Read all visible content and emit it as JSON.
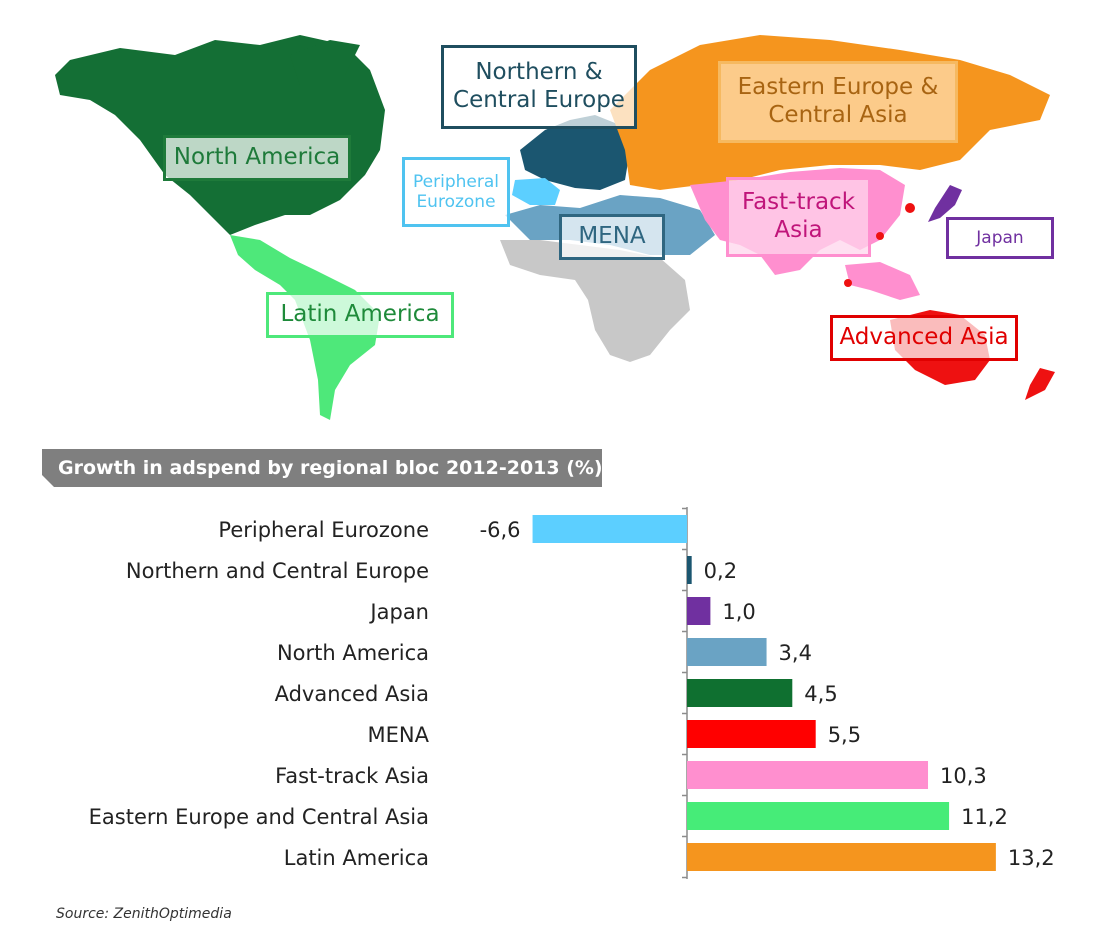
{
  "map": {
    "labels": [
      {
        "id": "northern-central-europe",
        "lines": [
          "Northern &",
          "Central Europe"
        ],
        "color": "#1f4e5f"
      },
      {
        "id": "eastern-europe-central-asia",
        "lines": [
          "Eastern Europe &",
          "Central Asia"
        ],
        "color": "#e08a1a"
      },
      {
        "id": "north-america",
        "lines": [
          "North America"
        ],
        "color": "#1e7a3a"
      },
      {
        "id": "peripheral-eurozone",
        "lines": [
          "Peripheral",
          "Eurozone"
        ],
        "color": "#4fc3f0"
      },
      {
        "id": "fast-track-asia",
        "lines": [
          "Fast-track",
          "Asia"
        ],
        "color": "#c0157a"
      },
      {
        "id": "mena",
        "lines": [
          "MENA"
        ],
        "color": "#2f6680"
      },
      {
        "id": "japan",
        "lines": [
          "Japan"
        ],
        "color": "#7030a0"
      },
      {
        "id": "latin-america",
        "lines": [
          "Latin America"
        ],
        "color": "#1e8a3a"
      },
      {
        "id": "advanced-asia",
        "lines": [
          "Advanced Asia"
        ],
        "color": "#e00000"
      }
    ],
    "region_colors": {
      "north_america": "#146f35",
      "latin_america": "#4ee87a",
      "northern_central_europe": "#1b5670",
      "peripheral_eurozone": "#5ccfff",
      "eastern_europe_central_asia": "#f5951e",
      "mena": "#6aa3c4",
      "africa": "#c8c8c8",
      "fast_track_asia": "#ff8fcf",
      "japan": "#7030a0",
      "advanced_asia": "#ee1111"
    }
  },
  "chart_title": "Growth in adspend by regional bloc 2012-2013 (%)",
  "chart_data": {
    "type": "bar",
    "orientation": "horizontal",
    "categories": [
      "Peripheral Eurozone",
      "Northern and Central Europe",
      "Japan",
      "North America",
      "Advanced Asia",
      "MENA",
      "Fast-track Asia",
      "Eastern Europe and Central Asia",
      "Latin America"
    ],
    "values": [
      -6.6,
      0.2,
      1.0,
      3.4,
      4.5,
      5.5,
      10.3,
      11.2,
      13.2
    ],
    "value_labels": [
      "-6,6",
      "0,2",
      "1,0",
      "3,4",
      "4,5",
      "5,5",
      "10,3",
      "11,2",
      "13,2"
    ],
    "colors": [
      "#5ccfff",
      "#1b5670",
      "#7030a0",
      "#6aa3c4",
      "#0f7030",
      "#ff0000",
      "#ff8fcf",
      "#46ec78",
      "#f5951e"
    ],
    "title": "Growth in adspend by regional bloc 2012-2013 (%)",
    "xlabel": "",
    "ylabel": "",
    "xlim": [
      -6.6,
      13.2
    ],
    "grid": false
  },
  "source": "Source: ZenithOptimedia"
}
